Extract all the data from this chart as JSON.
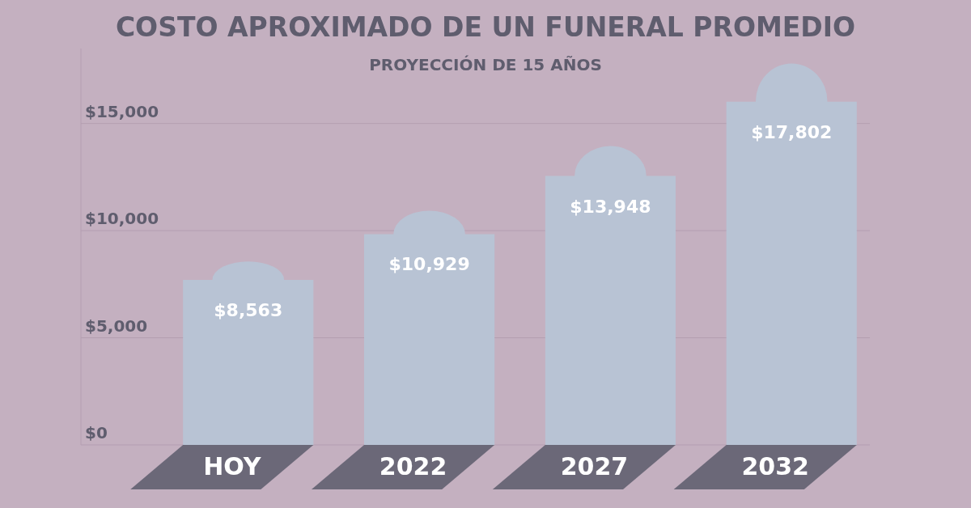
{
  "chart_data": {
    "type": "bar",
    "title": "COSTO APROXIMADO DE UN FUNERAL PROMEDIO",
    "subtitle": "PROYECCIÓN DE 15 AÑOS",
    "categories": [
      "HOY",
      "2022",
      "2027",
      "2032"
    ],
    "values": [
      8563,
      10929,
      13948,
      17802
    ],
    "value_labels": [
      "$8,563",
      "$10,929",
      "$13,948",
      "$17,802"
    ],
    "color": "#b8c3d4",
    "ylim": [
      0,
      18500
    ],
    "yticks": [
      {
        "value": 0,
        "label": "$0"
      },
      {
        "value": 5000,
        "label": "$5,000"
      },
      {
        "value": 10000,
        "label": "$10,000"
      },
      {
        "value": 15000,
        "label": "$15,000"
      }
    ],
    "grid": "y"
  }
}
